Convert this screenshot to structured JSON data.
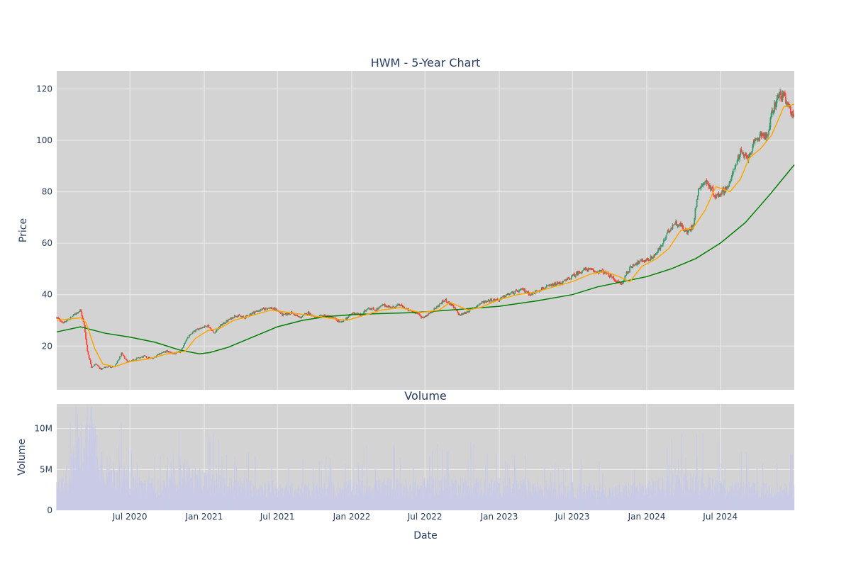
{
  "chart_data": [
    {
      "type": "candlestick",
      "title": "HWM - 5-Year Chart",
      "xlabel": "",
      "ylabel": "Price",
      "x_range": [
        "2020-01-02",
        "2024-12-31"
      ],
      "ylim": [
        3,
        127
      ],
      "yticks": [
        20,
        40,
        60,
        80,
        100,
        120
      ],
      "grid": true,
      "colors": {
        "up": "#3D9970",
        "down": "#FF4136",
        "ma_short": "#FFA500",
        "ma_long": "#008000",
        "plot_bg": "#d3d3d3",
        "grid": "#ececec"
      },
      "close_path": [
        [
          "2020-01-02",
          31
        ],
        [
          "2020-01-20",
          29
        ],
        [
          "2020-02-05",
          31
        ],
        [
          "2020-02-20",
          33
        ],
        [
          "2020-03-01",
          34
        ],
        [
          "2020-03-10",
          28
        ],
        [
          "2020-03-18",
          18
        ],
        [
          "2020-03-28",
          12
        ],
        [
          "2020-04-08",
          13
        ],
        [
          "2020-04-20",
          11
        ],
        [
          "2020-05-05",
          12
        ],
        [
          "2020-05-25",
          12
        ],
        [
          "2020-06-10",
          17
        ],
        [
          "2020-06-25",
          14
        ],
        [
          "2020-07-15",
          15
        ],
        [
          "2020-08-05",
          16
        ],
        [
          "2020-08-25",
          15
        ],
        [
          "2020-09-10",
          17
        ],
        [
          "2020-09-30",
          18
        ],
        [
          "2020-10-20",
          17
        ],
        [
          "2020-11-05",
          18
        ],
        [
          "2020-11-15",
          22
        ],
        [
          "2020-12-01",
          25
        ],
        [
          "2020-12-20",
          27
        ],
        [
          "2021-01-10",
          28
        ],
        [
          "2021-01-25",
          25
        ],
        [
          "2021-02-10",
          28
        ],
        [
          "2021-03-01",
          30
        ],
        [
          "2021-03-20",
          32
        ],
        [
          "2021-04-10",
          31
        ],
        [
          "2021-05-01",
          33
        ],
        [
          "2021-05-20",
          34
        ],
        [
          "2021-06-10",
          35
        ],
        [
          "2021-06-30",
          34
        ],
        [
          "2021-07-15",
          32
        ],
        [
          "2021-08-05",
          33
        ],
        [
          "2021-08-25",
          31
        ],
        [
          "2021-09-15",
          33
        ],
        [
          "2021-10-05",
          31
        ],
        [
          "2021-10-25",
          32
        ],
        [
          "2021-11-15",
          31
        ],
        [
          "2021-12-05",
          29
        ],
        [
          "2021-12-20",
          31
        ],
        [
          "2022-01-05",
          33
        ],
        [
          "2022-01-25",
          32
        ],
        [
          "2022-02-10",
          35
        ],
        [
          "2022-03-01",
          34
        ],
        [
          "2022-03-20",
          36
        ],
        [
          "2022-04-10",
          35
        ],
        [
          "2022-04-30",
          36
        ],
        [
          "2022-05-20",
          34
        ],
        [
          "2022-06-10",
          33
        ],
        [
          "2022-06-25",
          31
        ],
        [
          "2022-07-15",
          33
        ],
        [
          "2022-08-05",
          36
        ],
        [
          "2022-08-20",
          38
        ],
        [
          "2022-09-05",
          36
        ],
        [
          "2022-09-25",
          32
        ],
        [
          "2022-10-10",
          33
        ],
        [
          "2022-10-30",
          35
        ],
        [
          "2022-11-20",
          37
        ],
        [
          "2022-12-10",
          38
        ],
        [
          "2022-12-31",
          38
        ],
        [
          "2023-01-20",
          40
        ],
        [
          "2023-02-10",
          41
        ],
        [
          "2023-03-01",
          42
        ],
        [
          "2023-03-20",
          40
        ],
        [
          "2023-04-10",
          42
        ],
        [
          "2023-05-01",
          43
        ],
        [
          "2023-05-20",
          44
        ],
        [
          "2023-06-10",
          45
        ],
        [
          "2023-06-30",
          47
        ],
        [
          "2023-07-20",
          49
        ],
        [
          "2023-08-05",
          50
        ],
        [
          "2023-08-25",
          49
        ],
        [
          "2023-09-15",
          49
        ],
        [
          "2023-10-05",
          47
        ],
        [
          "2023-10-20",
          45
        ],
        [
          "2023-11-01",
          44
        ],
        [
          "2023-11-10",
          48
        ],
        [
          "2023-11-30",
          52
        ],
        [
          "2023-12-20",
          53
        ],
        [
          "2024-01-10",
          54
        ],
        [
          "2024-01-25",
          56
        ],
        [
          "2024-02-10",
          60
        ],
        [
          "2024-02-25",
          65
        ],
        [
          "2024-03-10",
          68
        ],
        [
          "2024-03-25",
          67
        ],
        [
          "2024-04-10",
          64
        ],
        [
          "2024-04-25",
          67
        ],
        [
          "2024-05-02",
          75
        ],
        [
          "2024-05-10",
          82
        ],
        [
          "2024-05-25",
          84
        ],
        [
          "2024-06-05",
          82
        ],
        [
          "2024-06-20",
          78
        ],
        [
          "2024-07-05",
          80
        ],
        [
          "2024-07-25",
          83
        ],
        [
          "2024-08-05",
          90
        ],
        [
          "2024-08-20",
          95
        ],
        [
          "2024-09-05",
          93
        ],
        [
          "2024-09-25",
          99
        ],
        [
          "2024-10-10",
          103
        ],
        [
          "2024-10-25",
          101
        ],
        [
          "2024-11-05",
          110
        ],
        [
          "2024-11-15",
          115
        ],
        [
          "2024-11-25",
          118
        ],
        [
          "2024-12-05",
          117
        ],
        [
          "2024-12-15",
          113
        ],
        [
          "2024-12-31",
          110
        ]
      ],
      "ma_short": [
        [
          "2020-01-02",
          30
        ],
        [
          "2020-03-01",
          31
        ],
        [
          "2020-03-15",
          29
        ],
        [
          "2020-04-05",
          19
        ],
        [
          "2020-04-25",
          13
        ],
        [
          "2020-05-25",
          12
        ],
        [
          "2020-07-01",
          14
        ],
        [
          "2020-08-15",
          15
        ],
        [
          "2020-10-01",
          17
        ],
        [
          "2020-11-15",
          18
        ],
        [
          "2020-12-10",
          23
        ],
        [
          "2021-01-10",
          26
        ],
        [
          "2021-02-10",
          27
        ],
        [
          "2021-03-15",
          30
        ],
        [
          "2021-05-01",
          32
        ],
        [
          "2021-06-15",
          34
        ],
        [
          "2021-08-01",
          33
        ],
        [
          "2021-09-15",
          32
        ],
        [
          "2021-11-01",
          31
        ],
        [
          "2021-12-20",
          30
        ],
        [
          "2022-02-01",
          32
        ],
        [
          "2022-03-15",
          34
        ],
        [
          "2022-05-01",
          35
        ],
        [
          "2022-06-20",
          33
        ],
        [
          "2022-08-05",
          34
        ],
        [
          "2022-09-01",
          37
        ],
        [
          "2022-10-15",
          34
        ],
        [
          "2022-11-15",
          35
        ],
        [
          "2022-12-31",
          38
        ],
        [
          "2023-02-15",
          40
        ],
        [
          "2023-04-01",
          41
        ],
        [
          "2023-05-15",
          43
        ],
        [
          "2023-06-30",
          45
        ],
        [
          "2023-08-15",
          48
        ],
        [
          "2023-09-20",
          49
        ],
        [
          "2023-10-25",
          47
        ],
        [
          "2023-11-20",
          45
        ],
        [
          "2023-12-20",
          51
        ],
        [
          "2024-01-25",
          54
        ],
        [
          "2024-02-25",
          58
        ],
        [
          "2024-03-25",
          65
        ],
        [
          "2024-04-25",
          66
        ],
        [
          "2024-05-25",
          73
        ],
        [
          "2024-06-20",
          82
        ],
        [
          "2024-07-25",
          80
        ],
        [
          "2024-08-20",
          85
        ],
        [
          "2024-09-10",
          93
        ],
        [
          "2024-10-10",
          97
        ],
        [
          "2024-11-05",
          102
        ],
        [
          "2024-12-05",
          113
        ],
        [
          "2024-12-31",
          114
        ]
      ],
      "ma_long": [
        [
          "2020-01-02",
          25.5
        ],
        [
          "2020-03-01",
          27.5
        ],
        [
          "2020-05-01",
          25
        ],
        [
          "2020-07-01",
          23.5
        ],
        [
          "2020-09-01",
          21.5
        ],
        [
          "2020-11-01",
          18.5
        ],
        [
          "2020-12-20",
          17
        ],
        [
          "2021-01-15",
          17.5
        ],
        [
          "2021-03-01",
          19.5
        ],
        [
          "2021-05-01",
          23.5
        ],
        [
          "2021-07-01",
          27.5
        ],
        [
          "2021-09-01",
          30
        ],
        [
          "2021-11-01",
          31.5
        ],
        [
          "2022-01-01",
          32.2
        ],
        [
          "2022-03-01",
          32.6
        ],
        [
          "2022-06-01",
          33
        ],
        [
          "2022-09-01",
          34
        ],
        [
          "2023-01-01",
          35.5
        ],
        [
          "2023-04-01",
          37.5
        ],
        [
          "2023-07-01",
          40
        ],
        [
          "2023-09-01",
          43
        ],
        [
          "2023-11-01",
          45
        ],
        [
          "2024-01-01",
          47
        ],
        [
          "2024-03-01",
          50
        ],
        [
          "2024-05-01",
          54
        ],
        [
          "2024-07-01",
          60
        ],
        [
          "2024-09-01",
          68
        ],
        [
          "2024-11-01",
          79
        ],
        [
          "2024-12-31",
          90.5
        ]
      ]
    },
    {
      "type": "bar",
      "title": "Volume",
      "xlabel": "Date",
      "ylabel": "Volume",
      "ylim": [
        0,
        13000000
      ],
      "yticks": [
        {
          "value": 0,
          "label": "0"
        },
        {
          "value": 5000000,
          "label": "5M"
        },
        {
          "value": 10000000,
          "label": "10M"
        }
      ],
      "x_ticks": [
        {
          "date": "2020-07-01",
          "label": "Jul 2020"
        },
        {
          "date": "2021-01-01",
          "label": "Jan 2021"
        },
        {
          "date": "2021-07-01",
          "label": "Jul 2021"
        },
        {
          "date": "2022-01-01",
          "label": "Jan 2022"
        },
        {
          "date": "2022-07-01",
          "label": "Jul 2022"
        },
        {
          "date": "2023-01-01",
          "label": "Jan 2023"
        },
        {
          "date": "2023-07-01",
          "label": "Jul 2023"
        },
        {
          "date": "2024-01-01",
          "label": "Jan 2024"
        },
        {
          "date": "2024-07-01",
          "label": "Jul 2024"
        }
      ],
      "grid": true,
      "colors": {
        "bar": "#c9cbe6",
        "plot_bg": "#d3d3d3",
        "grid": "#ececec"
      },
      "volume_envelope": [
        [
          "2020-01-02",
          3000000
        ],
        [
          "2020-02-01",
          5000000
        ],
        [
          "2020-03-01",
          9000000
        ],
        [
          "2020-03-20",
          12000000
        ],
        [
          "2020-04-10",
          9000000
        ],
        [
          "2020-05-01",
          6000000
        ],
        [
          "2020-07-01",
          4000000
        ],
        [
          "2020-10-01",
          3000000
        ],
        [
          "2020-11-10",
          6000000
        ],
        [
          "2020-12-01",
          4500000
        ],
        [
          "2021-03-01",
          3500000
        ],
        [
          "2021-06-01",
          3200000
        ],
        [
          "2021-09-01",
          2800000
        ],
        [
          "2021-12-01",
          3000000
        ],
        [
          "2022-03-01",
          3500000
        ],
        [
          "2022-06-01",
          3200000
        ],
        [
          "2022-09-01",
          3800000
        ],
        [
          "2022-11-01",
          3500000
        ],
        [
          "2023-03-01",
          3300000
        ],
        [
          "2023-07-01",
          2900000
        ],
        [
          "2023-10-01",
          2600000
        ],
        [
          "2024-01-01",
          3200000
        ],
        [
          "2024-03-01",
          3800000
        ],
        [
          "2024-05-01",
          4200000
        ],
        [
          "2024-08-01",
          3200000
        ],
        [
          "2024-10-01",
          2800000
        ],
        [
          "2024-12-31",
          3000000
        ]
      ]
    }
  ]
}
